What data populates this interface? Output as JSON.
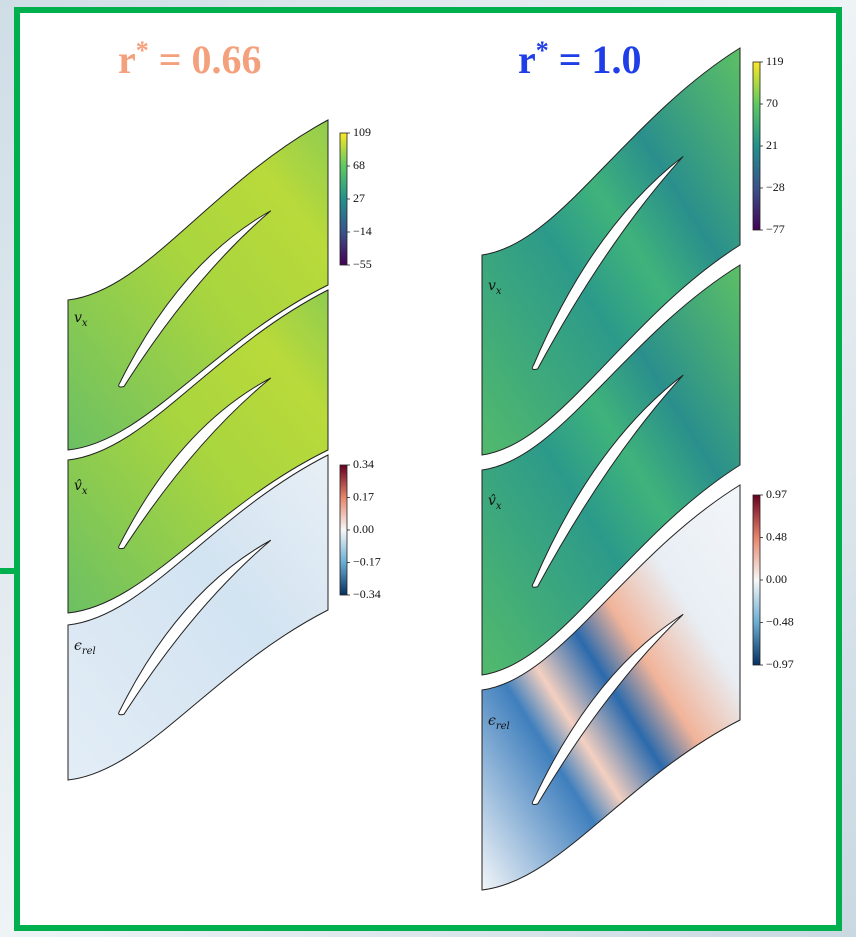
{
  "panels": [
    {
      "title": {
        "base": "r",
        "sup": "*",
        "rest": "= 0.66"
      },
      "labels": [
        {
          "symbol": "v",
          "sub": "x"
        },
        {
          "symbol": "v̂",
          "sub": "x"
        },
        {
          "symbol": "ϵ",
          "sub": "rel"
        }
      ],
      "colorbars": [
        {
          "ticks": [
            "109",
            "68",
            "27",
            "−14",
            "−55"
          ]
        },
        {
          "ticks": [
            "0.34",
            "0.17",
            "0.00",
            "−0.17",
            "−0.34"
          ]
        }
      ]
    },
    {
      "title": {
        "base": "r",
        "sup": "*",
        "rest": "= 1.0"
      },
      "labels": [
        {
          "symbol": "v",
          "sub": "x"
        },
        {
          "symbol": "v̂",
          "sub": "x"
        },
        {
          "symbol": "ϵ",
          "sub": "rel"
        }
      ],
      "colorbars": [
        {
          "ticks": [
            "119",
            "70",
            "21",
            "−28",
            "−77"
          ]
        },
        {
          "ticks": [
            "0.97",
            "0.48",
            "0.00",
            "−0.48",
            "−0.97"
          ]
        }
      ]
    }
  ]
}
